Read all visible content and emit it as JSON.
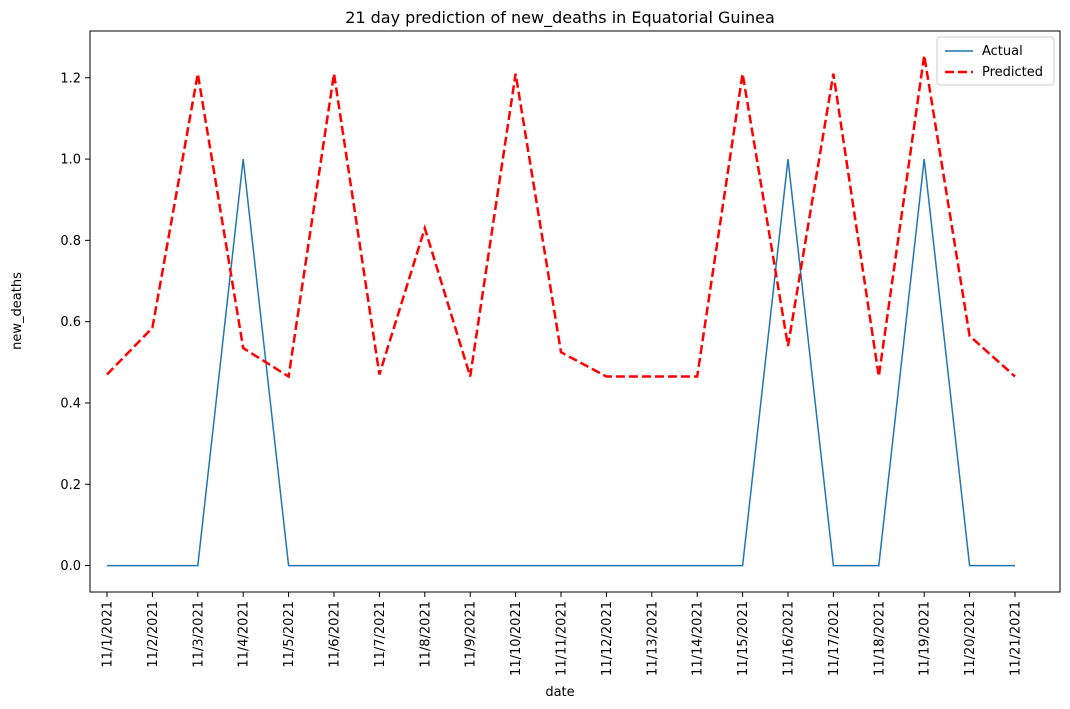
{
  "chart_data": {
    "type": "line",
    "title": "21 day prediction of new_deaths in Equatorial Guinea",
    "xlabel": "date",
    "ylabel": "new_deaths",
    "categories": [
      "11/1/2021",
      "11/2/2021",
      "11/3/2021",
      "11/4/2021",
      "11/5/2021",
      "11/6/2021",
      "11/7/2021",
      "11/8/2021",
      "11/9/2021",
      "11/10/2021",
      "11/11/2021",
      "11/12/2021",
      "11/13/2021",
      "11/14/2021",
      "11/15/2021",
      "11/16/2021",
      "11/17/2021",
      "11/18/2021",
      "11/19/2021",
      "11/20/2021",
      "11/21/2021"
    ],
    "ylim": [
      -0.065,
      1.315
    ],
    "yticks": [
      "0.0",
      "0.2",
      "0.4",
      "0.6",
      "0.8",
      "1.0",
      "1.2"
    ],
    "grid": false,
    "legend_position": "top-right",
    "series": [
      {
        "name": "Actual",
        "color": "#1f77b4",
        "style": "solid",
        "values": [
          0,
          0,
          0,
          1,
          0,
          0,
          0,
          0,
          0,
          0,
          0,
          0,
          0,
          0,
          0,
          1,
          0,
          0,
          1,
          0,
          0
        ]
      },
      {
        "name": "Predicted",
        "color": "#ff0000",
        "style": "dashed",
        "values": [
          0.47,
          0.585,
          1.21,
          0.535,
          0.465,
          1.21,
          0.47,
          0.83,
          0.465,
          1.21,
          0.525,
          0.465,
          0.465,
          0.465,
          1.21,
          0.54,
          1.21,
          0.465,
          1.255,
          0.565,
          0.465
        ]
      }
    ]
  }
}
